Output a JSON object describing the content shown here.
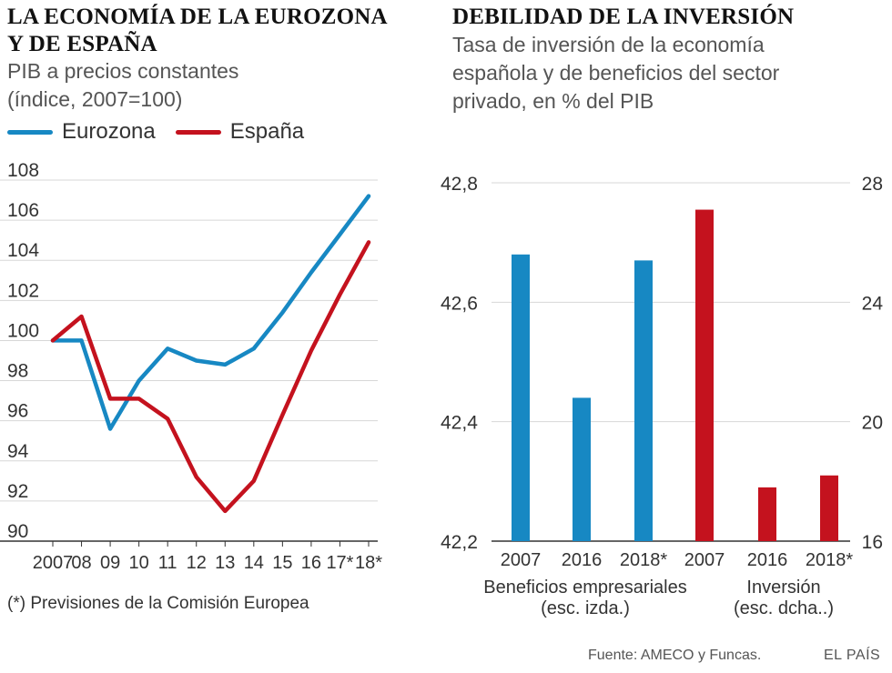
{
  "left": {
    "title_line1": "LA ECONOMÍA DE LA EUROZONA",
    "title_line2": "Y DE ESPAÑA",
    "subtitle_line1": "PIB a precios constantes",
    "subtitle_line2": "(índice, 2007=100)",
    "footnote": "(*) Previsiones de la Comisión Europea"
  },
  "right": {
    "title": "DEBILIDAD DE LA INVERSIÓN",
    "subtitle_line1": "Tasa de inversión de la economía",
    "subtitle_line2": "española y de beneficios del sector",
    "subtitle_line3": "privado, en % del PIB"
  },
  "source": "Fuente: AMECO y Funcas.",
  "brand": "EL PAÍS",
  "colors": {
    "eurozona": "#1788c3",
    "espana": "#c4121e",
    "grid": "#d7d7d7",
    "axis": "#333333"
  },
  "chart_data": [
    {
      "type": "line",
      "title": "LA ECONOMÍA DE LA EUROZONA Y DE ESPAÑA",
      "ylabel": "PIB a precios constantes (índice, 2007=100)",
      "ylim": [
        90,
        108
      ],
      "yticks": [
        90,
        92,
        94,
        96,
        98,
        100,
        102,
        104,
        106,
        108
      ],
      "categories": [
        "2007",
        "08",
        "09",
        "10",
        "11",
        "12",
        "13",
        "14",
        "15",
        "16",
        "17*",
        "18*"
      ],
      "series": [
        {
          "name": "Eurozona",
          "color": "#1788c3",
          "values": [
            100.0,
            100.0,
            95.6,
            98.0,
            99.6,
            99.0,
            98.8,
            99.6,
            101.4,
            103.4,
            105.3,
            107.2
          ]
        },
        {
          "name": "España",
          "color": "#c4121e",
          "values": [
            100.0,
            101.2,
            97.1,
            97.1,
            96.1,
            93.2,
            91.5,
            93.0,
            96.3,
            99.5,
            102.3,
            104.9
          ]
        }
      ]
    },
    {
      "type": "bar",
      "title": "DEBILIDAD DE LA INVERSIÓN",
      "groups": [
        {
          "label_line1": "Beneficios empresariales",
          "label_line2": "(esc. izda.)",
          "axis": "left",
          "color": "#1788c3",
          "categories": [
            "2007",
            "2016",
            "2018*"
          ],
          "values": [
            42.68,
            42.44,
            42.67
          ]
        },
        {
          "label_line1": "Inversión",
          "label_line2": "(esc. dcha..)",
          "axis": "right",
          "color": "#c4121e",
          "categories": [
            "2007",
            "2016",
            "2018*"
          ],
          "values": [
            27.1,
            17.8,
            18.2
          ]
        }
      ],
      "y_left": {
        "lim": [
          42.2,
          42.8
        ],
        "ticks": [
          "42,2",
          "42,4",
          "42,6",
          "42,8"
        ]
      },
      "y_right": {
        "lim": [
          16,
          28
        ],
        "ticks": [
          "16",
          "20",
          "24",
          "28"
        ]
      }
    }
  ]
}
